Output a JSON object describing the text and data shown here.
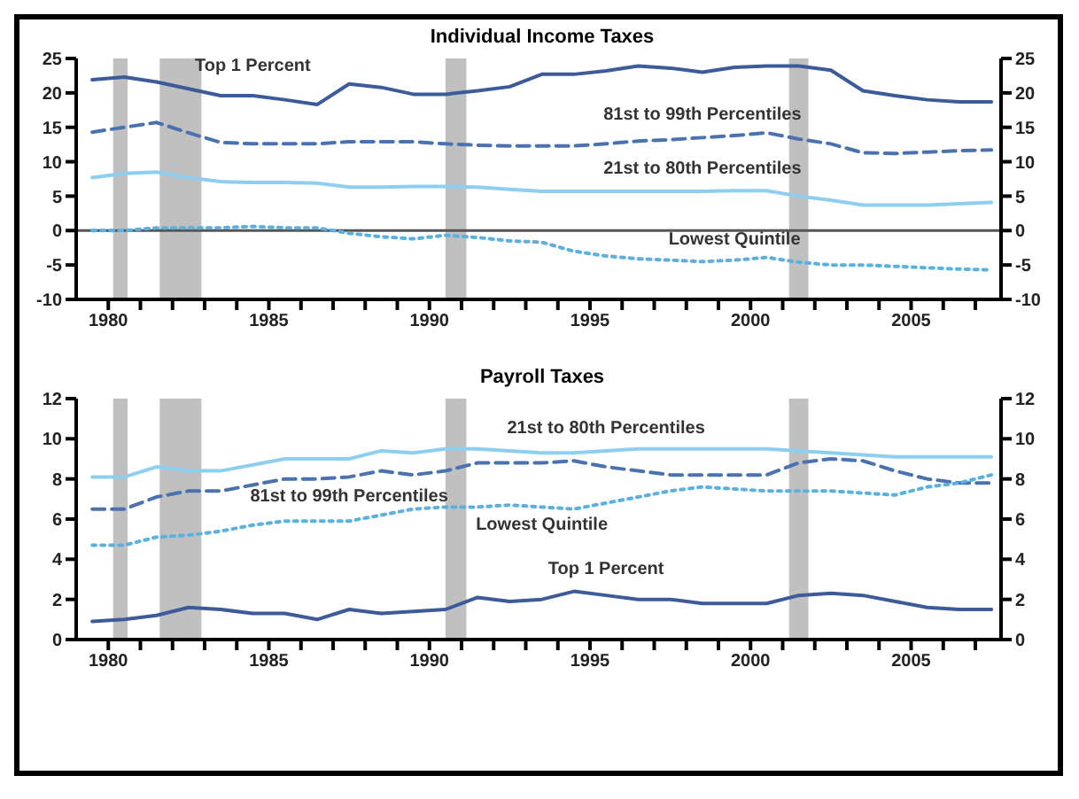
{
  "chart_data": [
    {
      "type": "line",
      "title": "Individual Income Taxes",
      "grid": false,
      "x": [
        1979.5,
        1980.5,
        1981.5,
        1982.5,
        1983.5,
        1984.5,
        1985.5,
        1986.5,
        1987.5,
        1988.5,
        1989.5,
        1990.5,
        1991.5,
        1992.5,
        1993.5,
        1994.5,
        1995.5,
        1996.5,
        1997.5,
        1998.5,
        1999.5,
        2000.5,
        2001.5,
        2002.5,
        2003.5,
        2004.5,
        2005.5,
        2006.5,
        2007.5
      ],
      "xlim": [
        1979,
        2007.8
      ],
      "xticks": [
        1980,
        {
          "value": 1981,
          "label": null
        },
        {
          "value": 1982,
          "label": null
        },
        {
          "value": 1983,
          "label": null
        },
        {
          "value": 1984,
          "label": null
        },
        1985,
        {
          "value": 1986,
          "label": null
        },
        {
          "value": 1987,
          "label": null
        },
        {
          "value": 1988,
          "label": null
        },
        {
          "value": 1989,
          "label": null
        },
        1990,
        {
          "value": 1991,
          "label": null
        },
        {
          "value": 1992,
          "label": null
        },
        {
          "value": 1993,
          "label": null
        },
        {
          "value": 1994,
          "label": null
        },
        1995,
        {
          "value": 1996,
          "label": null
        },
        {
          "value": 1997,
          "label": null
        },
        {
          "value": 1998,
          "label": null
        },
        {
          "value": 1999,
          "label": null
        },
        2000,
        {
          "value": 2001,
          "label": null
        },
        {
          "value": 2002,
          "label": null
        },
        {
          "value": 2003,
          "label": null
        },
        {
          "value": 2004,
          "label": null
        },
        2005,
        {
          "value": 2006,
          "label": null
        },
        {
          "value": 2007,
          "label": null
        }
      ],
      "ylim": [
        -10,
        25
      ],
      "yticks": [
        -10,
        -5,
        0,
        5,
        10,
        15,
        20,
        25
      ],
      "y2lim": [
        -10,
        25
      ],
      "y2ticks": [
        -10,
        -5,
        0,
        5,
        10,
        15,
        20,
        25
      ],
      "ref_lines": [
        {
          "axis": "y",
          "value": 0,
          "color": "#555555"
        }
      ],
      "bands": [
        {
          "axis": "x",
          "from": 1980.15,
          "to": 1980.6,
          "color": "#c0c0c0"
        },
        {
          "axis": "x",
          "from": 1981.6,
          "to": 1982.9,
          "color": "#c0c0c0"
        },
        {
          "axis": "x",
          "from": 1990.5,
          "to": 1991.15,
          "color": "#c0c0c0"
        },
        {
          "axis": "x",
          "from": 2001.2,
          "to": 2001.8,
          "color": "#c0c0c0"
        }
      ],
      "series": [
        {
          "name": "Top 1 Percent",
          "color": "#3d5a99",
          "line_style": "solid",
          "values": [
            21.9,
            22.3,
            21.6,
            20.6,
            19.6,
            19.6,
            19.0,
            18.3,
            21.3,
            20.8,
            19.8,
            19.8,
            20.3,
            20.9,
            22.7,
            22.7,
            23.2,
            23.9,
            23.6,
            23.0,
            23.7,
            23.9,
            23.9,
            23.3,
            20.3,
            19.6,
            19.0,
            18.7,
            18.7
          ]
        },
        {
          "name": "81st to 99th Percentiles",
          "color": "#4a72b0",
          "line_style": "dashed",
          "values": [
            14.3,
            15.0,
            15.7,
            14.2,
            12.8,
            12.6,
            12.6,
            12.6,
            12.9,
            12.9,
            12.9,
            12.6,
            12.4,
            12.3,
            12.3,
            12.3,
            12.6,
            13.0,
            13.2,
            13.5,
            13.8,
            14.2,
            13.3,
            12.6,
            11.3,
            11.2,
            11.4,
            11.6,
            11.7
          ]
        },
        {
          "name": "21st to 80th Percentiles",
          "color": "#8ecff0",
          "line_style": "solid",
          "values": [
            7.7,
            8.3,
            8.5,
            7.7,
            7.1,
            7.0,
            7.0,
            6.9,
            6.3,
            6.3,
            6.4,
            6.4,
            6.3,
            6.0,
            5.7,
            5.7,
            5.7,
            5.7,
            5.7,
            5.7,
            5.8,
            5.8,
            5.0,
            4.4,
            3.7,
            3.7,
            3.7,
            3.9,
            4.1
          ]
        },
        {
          "name": "Lowest Quintile",
          "color": "#5ab0e0",
          "line_style": "dotted",
          "values": [
            0,
            0,
            0.4,
            0.4,
            0.4,
            0.6,
            0.4,
            0.4,
            -0.4,
            -0.9,
            -1.2,
            -0.7,
            -1.0,
            -1.5,
            -1.7,
            -3.0,
            -3.7,
            -4.1,
            -4.3,
            -4.5,
            -4.3,
            -3.9,
            -4.6,
            -5.0,
            -5.0,
            -5.2,
            -5.4,
            -5.6,
            -5.7
          ]
        }
      ]
    },
    {
      "type": "line",
      "title": "Payroll Taxes",
      "grid": false,
      "x": [
        1979.5,
        1980.5,
        1981.5,
        1982.5,
        1983.5,
        1984.5,
        1985.5,
        1986.5,
        1987.5,
        1988.5,
        1989.5,
        1990.5,
        1991.5,
        1992.5,
        1993.5,
        1994.5,
        1995.5,
        1996.5,
        1997.5,
        1998.5,
        1999.5,
        2000.5,
        2001.5,
        2002.5,
        2003.5,
        2004.5,
        2005.5,
        2006.5,
        2007.5
      ],
      "xlim": [
        1979,
        2007.8
      ],
      "xticks": [
        1980,
        {
          "value": 1981,
          "label": null
        },
        {
          "value": 1982,
          "label": null
        },
        {
          "value": 1983,
          "label": null
        },
        {
          "value": 1984,
          "label": null
        },
        1985,
        {
          "value": 1986,
          "label": null
        },
        {
          "value": 1987,
          "label": null
        },
        {
          "value": 1988,
          "label": null
        },
        {
          "value": 1989,
          "label": null
        },
        1990,
        {
          "value": 1991,
          "label": null
        },
        {
          "value": 1992,
          "label": null
        },
        {
          "value": 1993,
          "label": null
        },
        {
          "value": 1994,
          "label": null
        },
        1995,
        {
          "value": 1996,
          "label": null
        },
        {
          "value": 1997,
          "label": null
        },
        {
          "value": 1998,
          "label": null
        },
        {
          "value": 1999,
          "label": null
        },
        2000,
        {
          "value": 2001,
          "label": null
        },
        {
          "value": 2002,
          "label": null
        },
        {
          "value": 2003,
          "label": null
        },
        {
          "value": 2004,
          "label": null
        },
        2005,
        {
          "value": 2006,
          "label": null
        },
        {
          "value": 2007,
          "label": null
        }
      ],
      "ylim": [
        0,
        12
      ],
      "yticks": [
        0,
        2,
        4,
        6,
        8,
        10,
        12
      ],
      "y2lim": [
        0,
        12
      ],
      "y2ticks": [
        0,
        2,
        4,
        6,
        8,
        10,
        12
      ],
      "bands": [
        {
          "axis": "x",
          "from": 1980.15,
          "to": 1980.6,
          "color": "#c0c0c0"
        },
        {
          "axis": "x",
          "from": 1981.6,
          "to": 1982.9,
          "color": "#c0c0c0"
        },
        {
          "axis": "x",
          "from": 1990.5,
          "to": 1991.15,
          "color": "#c0c0c0"
        },
        {
          "axis": "x",
          "from": 2001.2,
          "to": 2001.8,
          "color": "#c0c0c0"
        }
      ],
      "series": [
        {
          "name": "Top 1 Percent",
          "color": "#3d5a99",
          "line_style": "solid",
          "values": [
            0.9,
            1.0,
            1.2,
            1.6,
            1.5,
            1.3,
            1.3,
            1.0,
            1.5,
            1.3,
            1.4,
            1.5,
            2.1,
            1.9,
            2.0,
            2.4,
            2.2,
            2.0,
            2.0,
            1.8,
            1.8,
            1.8,
            2.2,
            2.3,
            2.2,
            1.9,
            1.6,
            1.5,
            1.5
          ]
        },
        {
          "name": "81st to 99th Percentiles",
          "color": "#4a72b0",
          "line_style": "dashed",
          "values": [
            6.5,
            6.5,
            7.1,
            7.4,
            7.4,
            7.7,
            8.0,
            8.0,
            8.1,
            8.4,
            8.2,
            8.4,
            8.8,
            8.8,
            8.8,
            8.9,
            8.6,
            8.4,
            8.2,
            8.2,
            8.2,
            8.2,
            8.8,
            9.0,
            8.9,
            8.4,
            8.0,
            7.8,
            7.8
          ]
        },
        {
          "name": "21st to 80th Percentiles",
          "color": "#8ecff0",
          "line_style": "solid",
          "values": [
            8.1,
            8.1,
            8.6,
            8.4,
            8.4,
            8.7,
            9.0,
            9.0,
            9.0,
            9.4,
            9.3,
            9.5,
            9.5,
            9.4,
            9.3,
            9.3,
            9.4,
            9.5,
            9.5,
            9.5,
            9.5,
            9.5,
            9.4,
            9.3,
            9.2,
            9.1,
            9.1,
            9.1,
            9.1
          ]
        },
        {
          "name": "Lowest Quintile",
          "color": "#5ab0e0",
          "line_style": "dotted",
          "values": [
            4.7,
            4.7,
            5.1,
            5.2,
            5.4,
            5.7,
            5.9,
            5.9,
            5.9,
            6.2,
            6.5,
            6.6,
            6.6,
            6.7,
            6.6,
            6.5,
            6.8,
            7.1,
            7.4,
            7.6,
            7.5,
            7.4,
            7.4,
            7.4,
            7.3,
            7.2,
            7.6,
            7.8,
            8.2
          ]
        }
      ]
    }
  ]
}
